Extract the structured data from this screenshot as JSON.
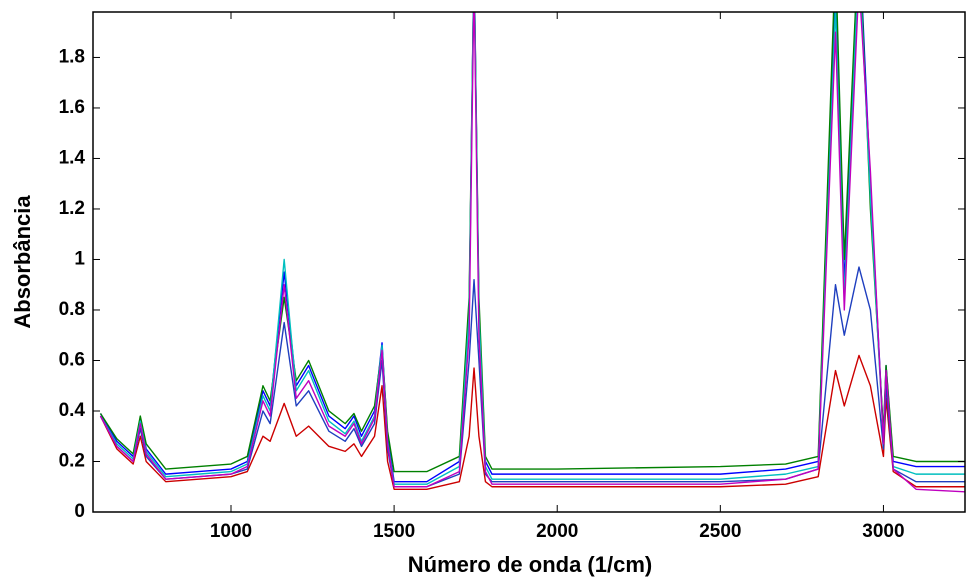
{
  "chart_data": {
    "type": "line",
    "x_label": "Número de onda (1/cm)",
    "y_label": "Absorbância",
    "xlim": [
      577,
      3250
    ],
    "ylim": [
      0,
      1.98
    ],
    "xticks": [
      1000,
      1500,
      2000,
      2500,
      3000
    ],
    "yticks": [
      0,
      0.2,
      0.4,
      0.6,
      0.8,
      1,
      1.2,
      1.4,
      1.6,
      1.8
    ],
    "x": [
      600,
      650,
      700,
      722,
      740,
      800,
      900,
      1000,
      1050,
      1098,
      1120,
      1163,
      1200,
      1238,
      1300,
      1350,
      1377,
      1400,
      1440,
      1463,
      1480,
      1500,
      1600,
      1700,
      1730,
      1745,
      1760,
      1780,
      1800,
      2000,
      2500,
      2700,
      2800,
      2853,
      2880,
      2925,
      2960,
      3000,
      3008,
      3030,
      3100,
      3250
    ],
    "series": [
      {
        "color": "#0000ff",
        "values": [
          0.39,
          0.28,
          0.22,
          0.37,
          0.25,
          0.15,
          0.16,
          0.17,
          0.2,
          0.48,
          0.42,
          0.95,
          0.5,
          0.58,
          0.38,
          0.33,
          0.38,
          0.3,
          0.4,
          0.67,
          0.3,
          0.12,
          0.12,
          0.2,
          0.8,
          2.2,
          0.8,
          0.2,
          0.15,
          0.15,
          0.15,
          0.17,
          0.2,
          2.1,
          0.9,
          2.3,
          1.3,
          0.3,
          0.58,
          0.2,
          0.18,
          0.18
        ]
      },
      {
        "color": "#cc0000",
        "values": [
          0.38,
          0.25,
          0.19,
          0.3,
          0.2,
          0.12,
          0.13,
          0.14,
          0.16,
          0.3,
          0.28,
          0.43,
          0.3,
          0.34,
          0.26,
          0.24,
          0.27,
          0.22,
          0.3,
          0.5,
          0.2,
          0.09,
          0.09,
          0.12,
          0.3,
          0.57,
          0.3,
          0.12,
          0.1,
          0.1,
          0.1,
          0.11,
          0.14,
          0.56,
          0.42,
          0.62,
          0.5,
          0.22,
          0.45,
          0.16,
          0.1,
          0.1
        ]
      },
      {
        "color": "#008000",
        "values": [
          0.39,
          0.29,
          0.23,
          0.38,
          0.27,
          0.17,
          0.18,
          0.19,
          0.22,
          0.5,
          0.44,
          0.85,
          0.52,
          0.6,
          0.4,
          0.35,
          0.39,
          0.32,
          0.42,
          0.65,
          0.32,
          0.16,
          0.16,
          0.22,
          0.85,
          2.2,
          0.85,
          0.22,
          0.17,
          0.17,
          0.18,
          0.19,
          0.22,
          2.2,
          1.0,
          2.3,
          1.2,
          0.32,
          0.58,
          0.22,
          0.2,
          0.2
        ]
      },
      {
        "color": "#00bfbf",
        "values": [
          0.38,
          0.27,
          0.21,
          0.36,
          0.24,
          0.14,
          0.15,
          0.16,
          0.19,
          0.46,
          0.4,
          1.0,
          0.48,
          0.56,
          0.36,
          0.31,
          0.36,
          0.28,
          0.38,
          0.66,
          0.28,
          0.11,
          0.11,
          0.18,
          0.78,
          2.2,
          0.78,
          0.18,
          0.13,
          0.13,
          0.13,
          0.15,
          0.18,
          2.0,
          0.85,
          2.2,
          1.25,
          0.28,
          0.55,
          0.18,
          0.15,
          0.15
        ]
      },
      {
        "color": "#1f3fbf",
        "values": [
          0.38,
          0.26,
          0.2,
          0.33,
          0.22,
          0.13,
          0.14,
          0.15,
          0.17,
          0.4,
          0.35,
          0.75,
          0.42,
          0.48,
          0.32,
          0.28,
          0.33,
          0.26,
          0.35,
          0.6,
          0.25,
          0.1,
          0.1,
          0.15,
          0.6,
          0.92,
          0.6,
          0.15,
          0.12,
          0.12,
          0.12,
          0.13,
          0.17,
          0.9,
          0.7,
          0.97,
          0.8,
          0.25,
          0.5,
          0.17,
          0.12,
          0.12
        ]
      },
      {
        "color": "#bf00bf",
        "values": [
          0.38,
          0.26,
          0.2,
          0.35,
          0.23,
          0.13,
          0.14,
          0.15,
          0.18,
          0.44,
          0.38,
          0.9,
          0.45,
          0.52,
          0.34,
          0.3,
          0.35,
          0.27,
          0.37,
          0.64,
          0.27,
          0.1,
          0.1,
          0.16,
          0.7,
          2.1,
          0.7,
          0.16,
          0.11,
          0.11,
          0.11,
          0.13,
          0.17,
          1.9,
          0.8,
          2.1,
          1.35,
          0.27,
          0.56,
          0.17,
          0.09,
          0.08
        ]
      }
    ]
  }
}
